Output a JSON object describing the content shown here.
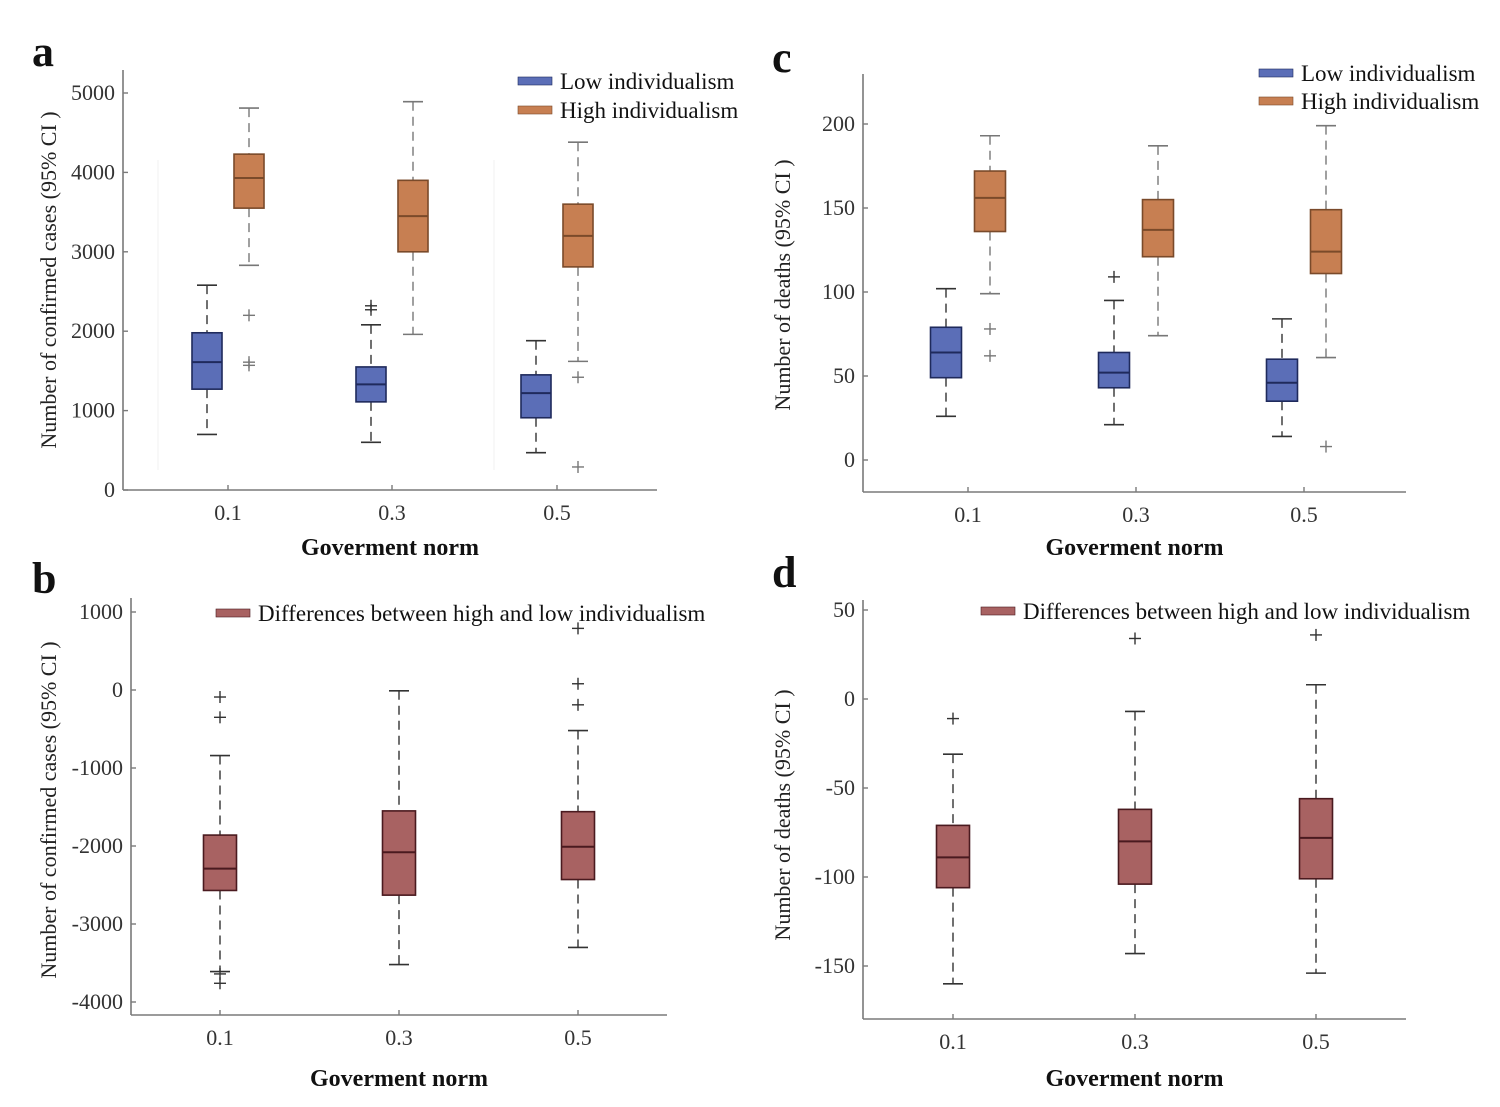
{
  "colors": {
    "low": "#5b6eb7",
    "low_edge": "#1f2a5c",
    "high": "#c77f52",
    "high_edge": "#7a4a2a",
    "diff": "#a86262",
    "diff_edge": "#4a1a1f",
    "whisker_low": "#333333",
    "whisker_high": "#777777",
    "whisker_diff": "#333333"
  },
  "chart_data": [
    {
      "panel": "a",
      "type": "boxplot",
      "xlabel": "Goverment norm",
      "ylabel": "Number of confirmed cases (95% CI )",
      "categories": [
        "0.1",
        "0.3",
        "0.5"
      ],
      "yticks": [
        0,
        1000,
        2000,
        3000,
        4000,
        5000
      ],
      "ytick_labels": [
        "0",
        "1000",
        "2000",
        "3000",
        "4000",
        "5000"
      ],
      "ylim": [
        0,
        5300
      ],
      "legend": {
        "placement": "top-right",
        "entries": [
          "Low individualism",
          "High individualism"
        ]
      },
      "series": [
        {
          "name": "Low individualism",
          "color_key": "low",
          "boxes": [
            {
              "whisker_low": 700,
              "q1": 1270,
              "median": 1610,
              "q3": 1980,
              "whisker_high": 2580,
              "outliers": []
            },
            {
              "whisker_low": 600,
              "q1": 1110,
              "median": 1330,
              "q3": 1550,
              "whisker_high": 2080,
              "outliers": [
                2320,
                2270
              ]
            },
            {
              "whisker_low": 470,
              "q1": 910,
              "median": 1220,
              "q3": 1450,
              "whisker_high": 1880,
              "outliers": []
            }
          ]
        },
        {
          "name": "High individualism",
          "color_key": "high",
          "boxes": [
            {
              "whisker_low": 2830,
              "q1": 3550,
              "median": 3930,
              "q3": 4230,
              "whisker_high": 4810,
              "outliers": [
                2200,
                1610,
                1570
              ]
            },
            {
              "whisker_low": 1960,
              "q1": 3000,
              "median": 3450,
              "q3": 3900,
              "whisker_high": 4890,
              "outliers": []
            },
            {
              "whisker_low": 1620,
              "q1": 2810,
              "median": 3200,
              "q3": 3600,
              "whisker_high": 4380,
              "outliers": [
                1420,
                290
              ]
            }
          ]
        }
      ]
    },
    {
      "panel": "b",
      "type": "boxplot",
      "xlabel": "Goverment norm",
      "ylabel": "Number of confirmed cases (95% CI )",
      "categories": [
        "0.1",
        "0.3",
        "0.5"
      ],
      "yticks": [
        -4000,
        -3000,
        -2000,
        -1000,
        0,
        1000
      ],
      "ytick_labels": [
        "-4000",
        "-3000",
        "-2000",
        "-1000",
        "0",
        "1000"
      ],
      "ylim": [
        -4200,
        1100
      ],
      "legend": {
        "placement": "top",
        "entries": [
          "Differences between high and low individualism"
        ]
      },
      "series": [
        {
          "name": "Differences between high and low individualism",
          "color_key": "diff",
          "boxes": [
            {
              "whisker_low": -3610,
              "q1": -2570,
              "median": -2290,
              "q3": -1860,
              "whisker_high": -840,
              "outliers": [
                -90,
                -350,
                -3640,
                -3760
              ]
            },
            {
              "whisker_low": -3520,
              "q1": -2630,
              "median": -2080,
              "q3": -1550,
              "whisker_high": -10,
              "outliers": []
            },
            {
              "whisker_low": -3300,
              "q1": -2430,
              "median": -2010,
              "q3": -1560,
              "whisker_high": -520,
              "outliers": [
                790,
                80,
                -190
              ]
            }
          ]
        }
      ]
    },
    {
      "panel": "c",
      "type": "boxplot",
      "xlabel": "Goverment norm",
      "ylabel": "Number of deaths (95% CI )",
      "categories": [
        "0.1",
        "0.3",
        "0.5"
      ],
      "yticks": [
        0,
        50,
        100,
        150,
        200
      ],
      "ytick_labels": [
        "0",
        "50",
        "100",
        "150",
        "200"
      ],
      "ylim": [
        -20,
        230
      ],
      "legend": {
        "placement": "top-right",
        "entries": [
          "Low individualism",
          "High individualism"
        ]
      },
      "series": [
        {
          "name": "Low individualism",
          "color_key": "low",
          "boxes": [
            {
              "whisker_low": 26,
              "q1": 49,
              "median": 64,
              "q3": 79,
              "whisker_high": 102,
              "outliers": []
            },
            {
              "whisker_low": 21,
              "q1": 43,
              "median": 52,
              "q3": 64,
              "whisker_high": 95,
              "outliers": [
                109
              ]
            },
            {
              "whisker_low": 14,
              "q1": 35,
              "median": 46,
              "q3": 60,
              "whisker_high": 84,
              "outliers": []
            }
          ]
        },
        {
          "name": "High individualism",
          "color_key": "high",
          "boxes": [
            {
              "whisker_low": 99,
              "q1": 136,
              "median": 156,
              "q3": 172,
              "whisker_high": 193,
              "outliers": [
                78,
                62
              ]
            },
            {
              "whisker_low": 74,
              "q1": 121,
              "median": 137,
              "q3": 155,
              "whisker_high": 187,
              "outliers": []
            },
            {
              "whisker_low": 61,
              "q1": 111,
              "median": 124,
              "q3": 149,
              "whisker_high": 199,
              "outliers": [
                8
              ]
            }
          ]
        }
      ]
    },
    {
      "panel": "d",
      "type": "boxplot",
      "xlabel": "Goverment norm",
      "ylabel": "Number of deaths (95% CI )",
      "categories": [
        "0.1",
        "0.3",
        "0.5"
      ],
      "yticks": [
        -150,
        -100,
        -50,
        0,
        50
      ],
      "ytick_labels": [
        "-150",
        "-100",
        "-50",
        "0",
        "50"
      ],
      "ylim": [
        -180,
        52
      ],
      "legend": {
        "placement": "top",
        "entries": [
          "Differences between high and low individualism"
        ]
      },
      "series": [
        {
          "name": "Differences between high and low individualism",
          "color_key": "diff",
          "boxes": [
            {
              "whisker_low": -160,
              "q1": -106,
              "median": -89,
              "q3": -71,
              "whisker_high": -31,
              "outliers": [
                -11
              ]
            },
            {
              "whisker_low": -143,
              "q1": -104,
              "median": -80,
              "q3": -62,
              "whisker_high": -7,
              "outliers": [
                34
              ]
            },
            {
              "whisker_low": -154,
              "q1": -101,
              "median": -78,
              "q3": -56,
              "whisker_high": 8,
              "outliers": [
                36
              ]
            }
          ]
        }
      ]
    }
  ]
}
